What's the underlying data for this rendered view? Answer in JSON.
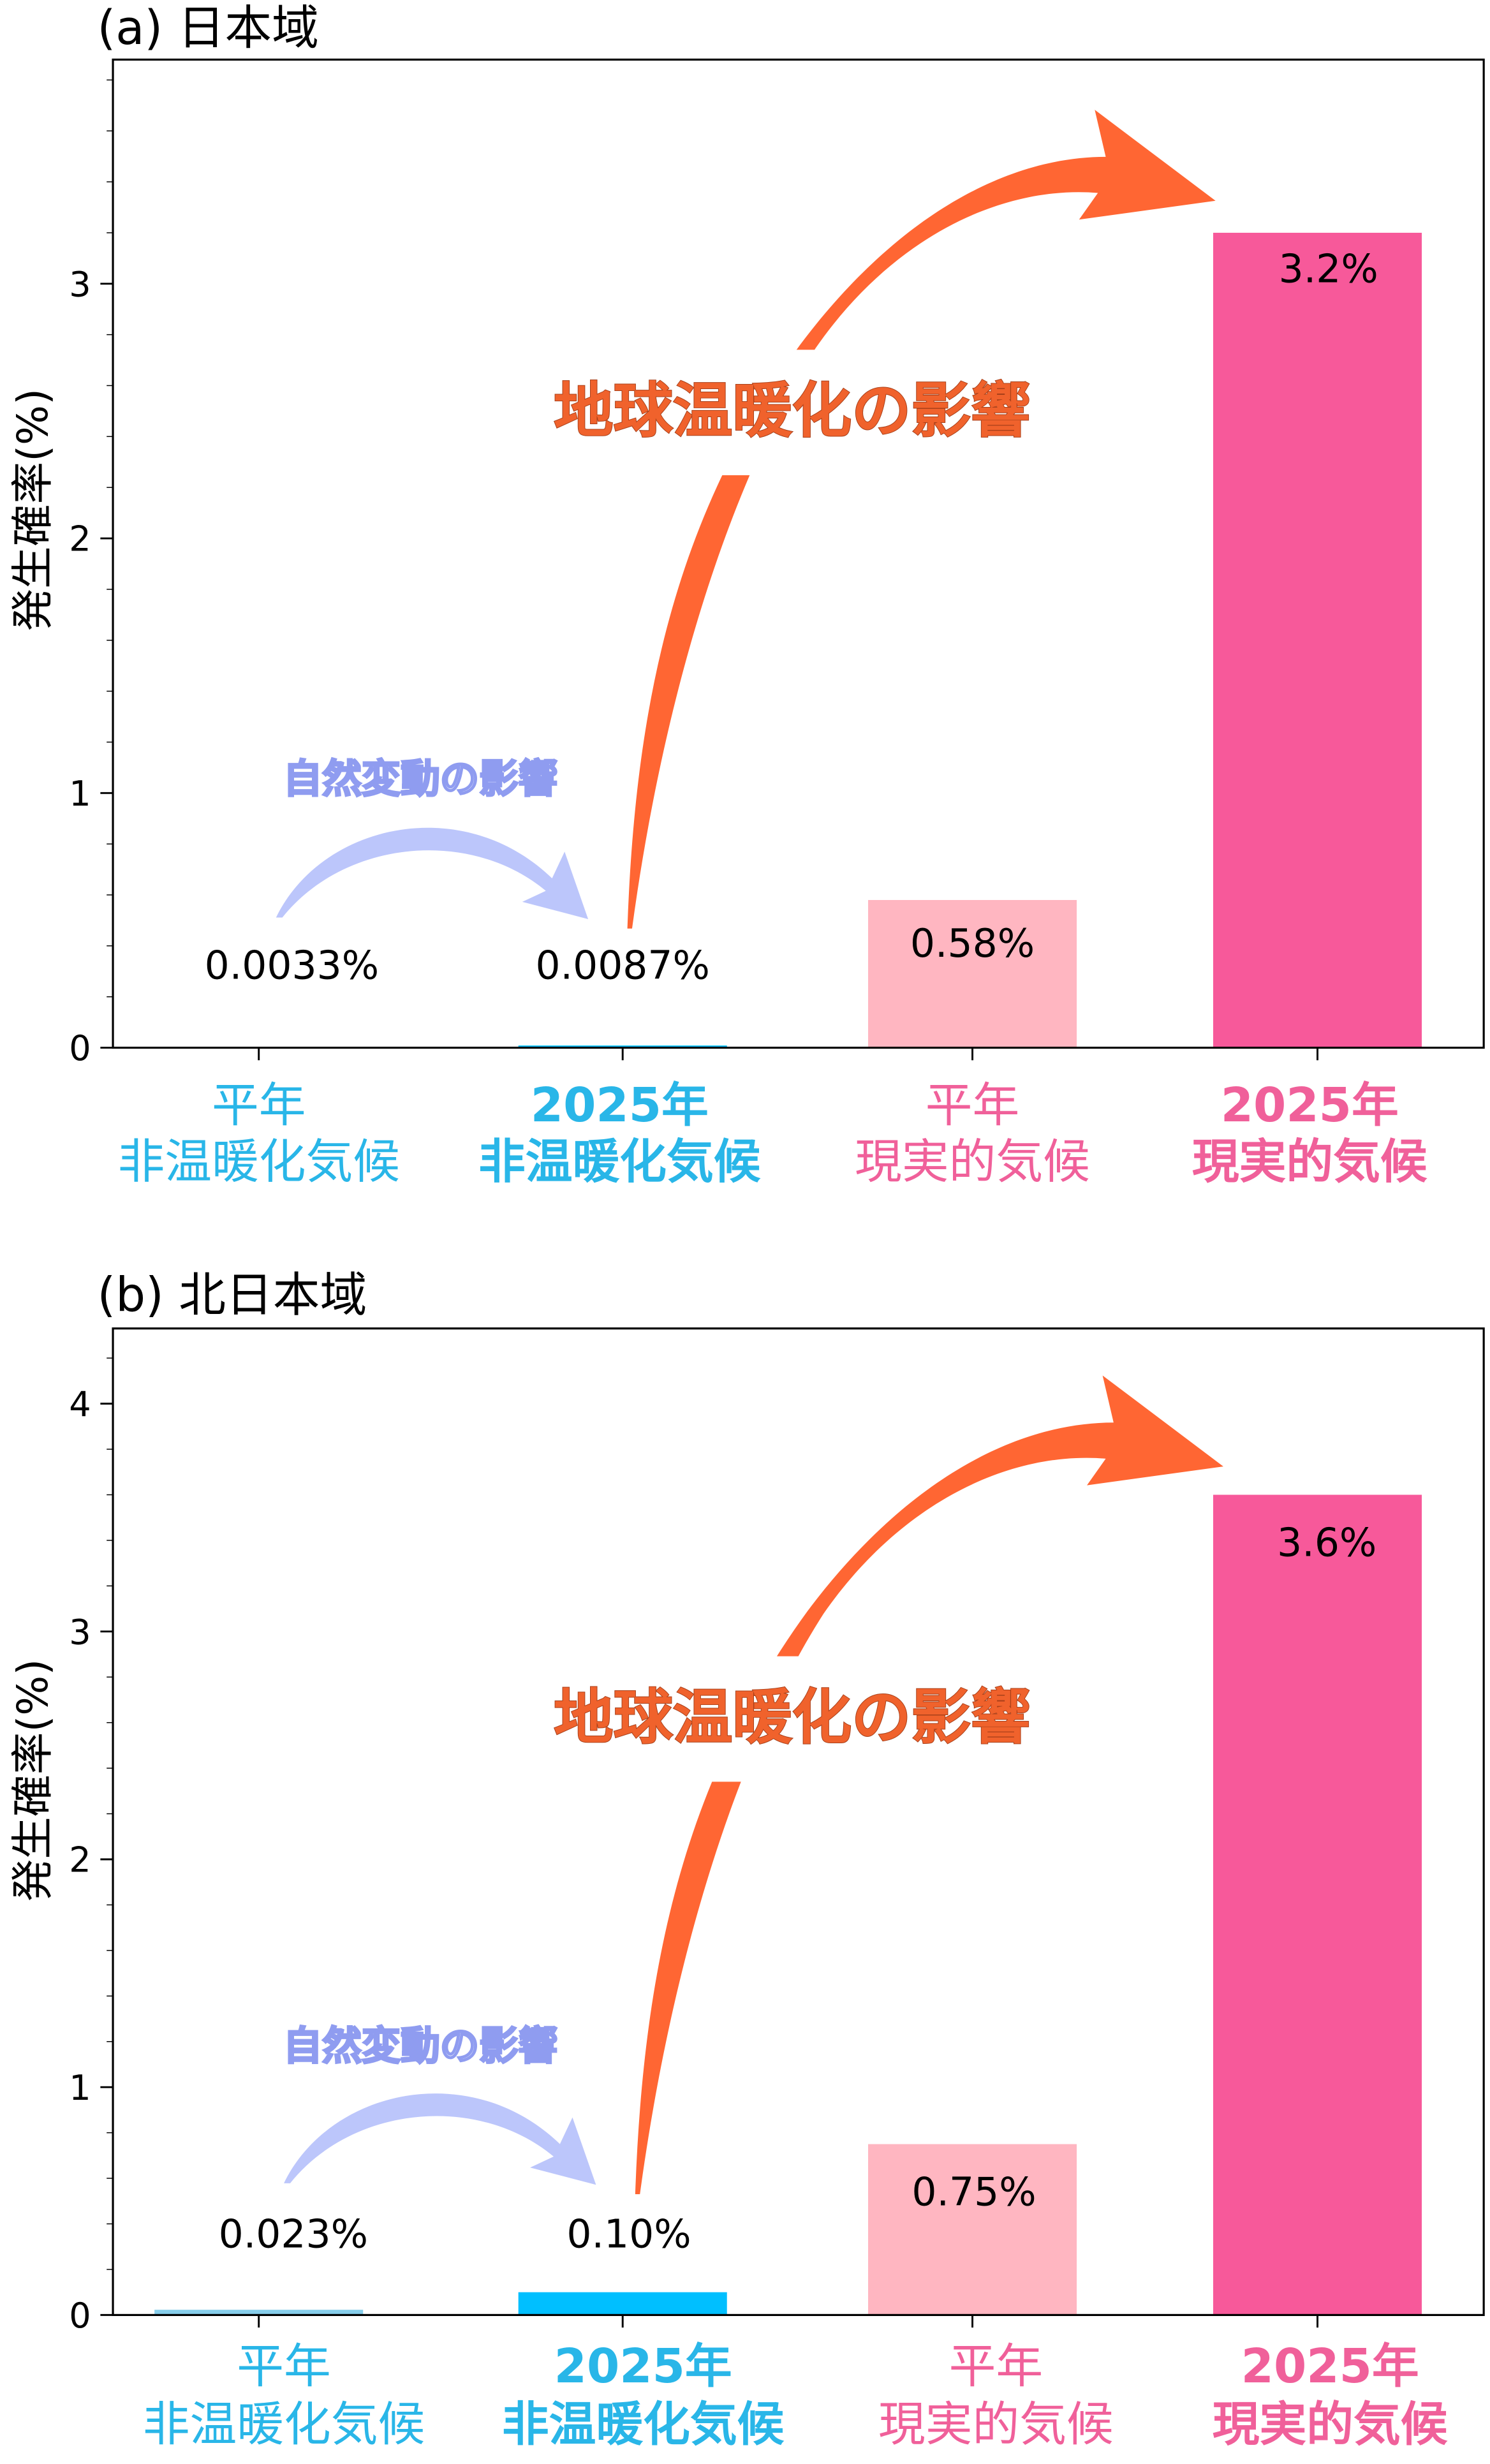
{
  "chart_data": [
    {
      "type": "bar",
      "title": "(a) 日本域",
      "ylabel": "発生確率(%)",
      "xlabel": "",
      "ylim": [
        0,
        3.88
      ],
      "yticks": [
        0,
        1,
        2,
        3
      ],
      "categories": [
        {
          "line1": "平年",
          "line2": "非温暖化気候",
          "bold": false,
          "color": "#29b6e8"
        },
        {
          "line1": "2025年",
          "line2": "非温暖化気候",
          "bold": true,
          "color": "#29b6e8"
        },
        {
          "line1": "平年",
          "line2": "現実的気候",
          "bold": false,
          "color": "#f0609a"
        },
        {
          "line1": "2025年",
          "line2": "現実的気候",
          "bold": true,
          "color": "#f0609a"
        }
      ],
      "values": [
        0.0033,
        0.0087,
        0.58,
        3.2
      ],
      "data_labels": [
        "0.0033%",
        "0.0087%",
        "0.58%",
        "3.2%"
      ],
      "bar_colors": [
        "#87ceeb",
        "#00bfff",
        "#ffb6c1",
        "#f7599a"
      ],
      "annotations": {
        "warming": "地球温暖化の影響",
        "natural": "自然変動の影響"
      },
      "grid": false
    },
    {
      "type": "bar",
      "title": "(b) 北日本域",
      "ylabel": "発生確率(%)",
      "xlabel": "",
      "ylim": [
        0,
        4.33
      ],
      "yticks": [
        0,
        1,
        2,
        3,
        4
      ],
      "categories": [
        {
          "line1": "平年",
          "line2": "非温暖化気候",
          "bold": false,
          "color": "#29b6e8"
        },
        {
          "line1": "2025年",
          "line2": "非温暖化気候",
          "bold": true,
          "color": "#29b6e8"
        },
        {
          "line1": "平年",
          "line2": "現実的気候",
          "bold": false,
          "color": "#f0609a"
        },
        {
          "line1": "2025年",
          "line2": "現実的気候",
          "bold": true,
          "color": "#f0609a"
        }
      ],
      "values": [
        0.023,
        0.1,
        0.75,
        3.6
      ],
      "data_labels": [
        "0.023%",
        "0.10%",
        "0.75%",
        "3.6%"
      ],
      "bar_colors": [
        "#87ceeb",
        "#00bfff",
        "#ffb6c1",
        "#f7599a"
      ],
      "annotations": {
        "warming": "地球温暖化の影響",
        "natural": "自然変動の影響"
      },
      "grid": false
    }
  ]
}
